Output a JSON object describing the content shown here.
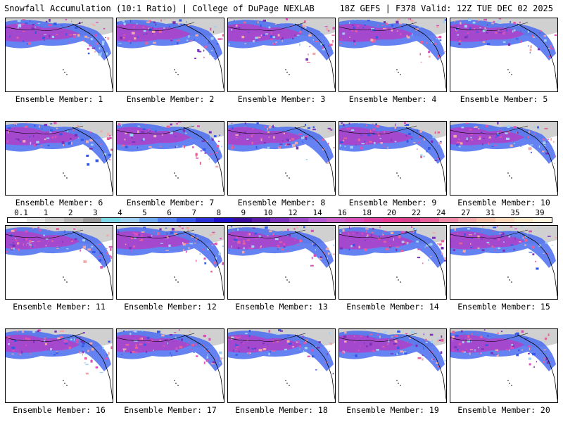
{
  "header": {
    "title": "Snowfall Accumulation (10:1 Ratio) | College of DuPage NEXLAB",
    "run_info": "18Z GEFS | F378 Valid: 12Z TUE DEC 02 2025"
  },
  "members": [
    "Ensemble Member: 1",
    "Ensemble Member: 2",
    "Ensemble Member: 3",
    "Ensemble Member: 4",
    "Ensemble Member: 5",
    "Ensemble Member: 6",
    "Ensemble Member: 7",
    "Ensemble Member: 8",
    "Ensemble Member: 9",
    "Ensemble Member: 10",
    "Ensemble Member: 11",
    "Ensemble Member: 12",
    "Ensemble Member: 13",
    "Ensemble Member: 14",
    "Ensemble Member: 15",
    "Ensemble Member: 16",
    "Ensemble Member: 17",
    "Ensemble Member: 18",
    "Ensemble Member: 19",
    "Ensemble Member: 20"
  ],
  "legend": {
    "labels": [
      "0.1",
      "1",
      "2",
      "3",
      "4",
      "5",
      "6",
      "7",
      "8",
      "9",
      "10",
      "12",
      "14",
      "16",
      "18",
      "20",
      "22",
      "24",
      "27",
      "31",
      "35",
      "39"
    ],
    "colors": [
      "#ffffff",
      "#e6e6e6",
      "#cfcfcf",
      "#b5b5b5",
      "#9a9a9a",
      "#7dd8e8",
      "#9fd0f5",
      "#6fa9f0",
      "#4f7ff0",
      "#3558e8",
      "#2a2fd6",
      "#1e10c8",
      "#3a0a9a",
      "#5a1aa8",
      "#7a30b8",
      "#9a45c8",
      "#b258d0",
      "#c860c8",
      "#d850b8",
      "#e040a0",
      "#e83a90",
      "#d8408a",
      "#e8609a",
      "#f088a8",
      "#f0a8a8",
      "#f5c0a8",
      "#f8d8b8",
      "#fae8c8",
      "#fdf5e0"
    ]
  }
}
